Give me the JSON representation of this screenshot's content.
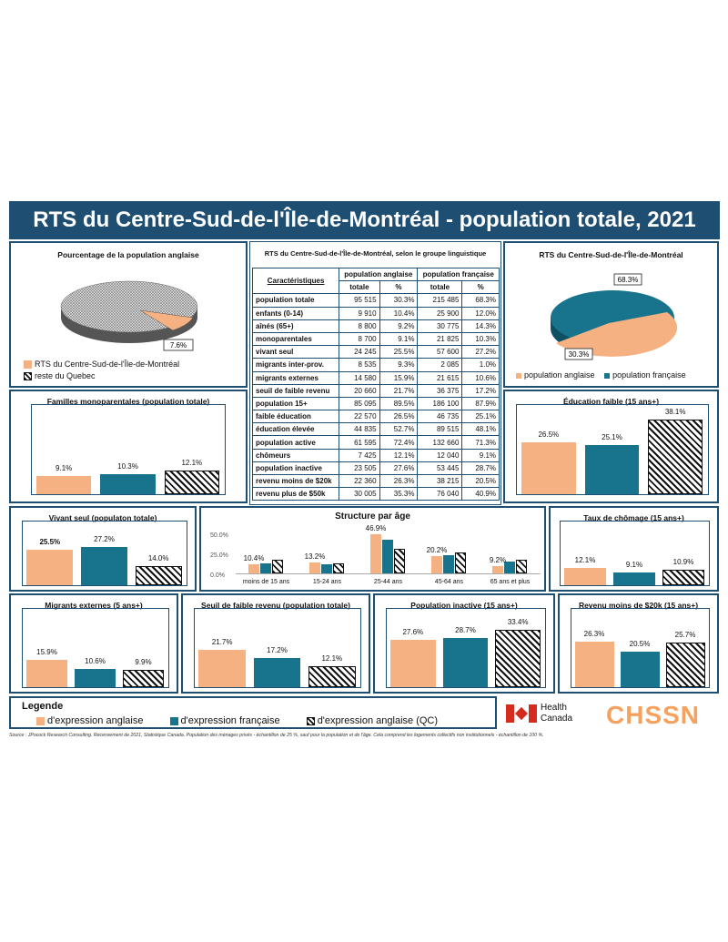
{
  "title": "RTS du Centre-Sud-de-l'Île-de-Montréal - population totale, 2021",
  "colors": {
    "english": "#f6b183",
    "french": "#17748c",
    "english_qc": "hatched",
    "frame": "#1f4e73"
  },
  "pie_left": {
    "title": "Pourcentage de la population anglaise",
    "slice_label": "7.6%",
    "legend": [
      "RTS du Centre-Sud-de-l'Île-de-Montréal",
      "reste du Quebec"
    ]
  },
  "pie_right": {
    "title": "RTS du Centre-Sud-de-l'Île-de-Montréal",
    "label_fra": "68.3%",
    "label_eng": "30.3%",
    "legend": [
      "population anglaise",
      "population française"
    ]
  },
  "table": {
    "title": "RTS du Centre-Sud-de-l'Île-de-Montréal, selon le groupe linguistique",
    "col_caract": "Caractéristiques",
    "col_eng": "population anglaise",
    "col_fra": "population française",
    "sub_total": "totale",
    "sub_pct": "%",
    "rows": [
      {
        "label": "population totale",
        "eng_n": "95 515",
        "eng_p": "30.3%",
        "fra_n": "215 485",
        "fra_p": "68.3%"
      },
      {
        "label": "enfants (0-14)",
        "eng_n": "9 910",
        "eng_p": "10.4%",
        "fra_n": "25 900",
        "fra_p": "12.0%"
      },
      {
        "label": "aînés (65+)",
        "eng_n": "8 800",
        "eng_p": "9.2%",
        "fra_n": "30 775",
        "fra_p": "14.3%"
      },
      {
        "label": "monoparentales",
        "eng_n": "8 700",
        "eng_p": "9.1%",
        "fra_n": "21 825",
        "fra_p": "10.3%"
      },
      {
        "label": "vivant seul",
        "eng_n": "24 245",
        "eng_p": "25.5%",
        "fra_n": "57 600",
        "fra_p": "27.2%"
      },
      {
        "label": "migrants inter-prov.",
        "eng_n": "8 535",
        "eng_p": "9.3%",
        "fra_n": "2 085",
        "fra_p": "1.0%"
      },
      {
        "label": "migrants externes",
        "eng_n": "14 580",
        "eng_p": "15.9%",
        "fra_n": "21 615",
        "fra_p": "10.6%"
      },
      {
        "label": "seuil de faible revenu",
        "eng_n": "20 660",
        "eng_p": "21.7%",
        "fra_n": "36 375",
        "fra_p": "17.2%"
      },
      {
        "label": "population 15+",
        "eng_n": "85 095",
        "eng_p": "89.5%",
        "fra_n": "186 100",
        "fra_p": "87.9%"
      },
      {
        "label": "faible éducation",
        "eng_n": "22 570",
        "eng_p": "26.5%",
        "fra_n": "46 735",
        "fra_p": "25.1%"
      },
      {
        "label": "éducation élevée",
        "eng_n": "44 835",
        "eng_p": "52.7%",
        "fra_n": "89 515",
        "fra_p": "48.1%"
      },
      {
        "label": "population active",
        "eng_n": "61 595",
        "eng_p": "72.4%",
        "fra_n": "132 660",
        "fra_p": "71.3%"
      },
      {
        "label": "chômeurs",
        "eng_n": "7 425",
        "eng_p": "12.1%",
        "fra_n": "12 040",
        "fra_p": "9.1%"
      },
      {
        "label": "population inactive",
        "eng_n": "23 505",
        "eng_p": "27.6%",
        "fra_n": "53 445",
        "fra_p": "28.7%"
      },
      {
        "label": "revenu moins de $20k",
        "eng_n": "22 360",
        "eng_p": "26.3%",
        "fra_n": "38 215",
        "fra_p": "20.5%"
      },
      {
        "label": "revenu plus de $50k",
        "eng_n": "30 005",
        "eng_p": "35.3%",
        "fra_n": "76 040",
        "fra_p": "40.9%"
      }
    ]
  },
  "legend": {
    "title": "Legende",
    "eng": "d'expression anglaise",
    "fra": "d'expression française",
    "qc": "d'expression anglaise (QC)"
  },
  "logos": {
    "health_canada_1": "Health",
    "health_canada_2": "Canada",
    "chssn": "CHSSN"
  },
  "source": "Source : JPocock Research Consulting. Recensement de 2021, Statistique Canada. Population des ménages privés - échantillon de 25 %, sauf pour la population et de l'âge. Cela comprend les logements collectifs non institutionnels - échantillon de 100 %.",
  "chart_data": [
    {
      "type": "pie",
      "title": "Pourcentage de la population anglaise",
      "categories": [
        "RTS du Centre-Sud-de-l'Île-de-Montréal",
        "reste du Quebec"
      ],
      "values": [
        7.6,
        92.4
      ]
    },
    {
      "type": "pie",
      "title": "RTS du Centre-Sud-de-l'Île-de-Montréal",
      "categories": [
        "population anglaise",
        "population française"
      ],
      "values": [
        30.3,
        68.3
      ]
    },
    {
      "type": "bar",
      "title": "Familles monoparentales (population totale)",
      "categories": [
        "d'expression anglaise",
        "d'expression française",
        "d'expression anglaise (QC)"
      ],
      "values": [
        9.1,
        10.3,
        12.1
      ],
      "labels": [
        "9.1%",
        "10.3%",
        "12.1%"
      ],
      "ymax": 45
    },
    {
      "type": "bar",
      "title": "Éducation faible (15 ans+)",
      "categories": [
        "d'expression anglaise",
        "d'expression française",
        "d'expression anglaise (QC)"
      ],
      "values": [
        26.5,
        25.1,
        38.1
      ],
      "labels": [
        "26.5%",
        "25.1%",
        "38.1%"
      ],
      "ymax": 45
    },
    {
      "type": "bar",
      "title": "Vivant seul (populaton totale)",
      "categories": [
        "d'expression anglaise",
        "d'expression française",
        "d'expression anglaise (QC)"
      ],
      "values": [
        25.5,
        27.2,
        14.0
      ],
      "labels": [
        "25.5%",
        "27.2%",
        "14.0%"
      ],
      "ymax": 45
    },
    {
      "type": "bar",
      "title": "Structure par âge",
      "yticks": [
        "50.0%",
        "25.0%",
        "0.0%"
      ],
      "ylim": [
        0,
        50
      ],
      "categories": [
        "moins de 15 ans",
        "15-24 ans",
        "25-44 ans",
        "45-64 ans",
        "65 ans et plus"
      ],
      "series": [
        {
          "name": "d'expression anglaise",
          "values": [
            10.4,
            13.2,
            46.9,
            20.2,
            9.2
          ],
          "labels": [
            "10.4%",
            "13.2%",
            "46.9%",
            "20.2%",
            "9.2%"
          ]
        },
        {
          "name": "d'expression française",
          "values": [
            12.0,
            11.0,
            40.0,
            22.0,
            14.3
          ]
        },
        {
          "name": "d'expression anglaise (QC)",
          "values": [
            16.0,
            12.0,
            29.0,
            25.0,
            16.0
          ]
        }
      ]
    },
    {
      "type": "bar",
      "title": "Taux de chômage (15 ans+)",
      "categories": [
        "d'expression anglaise",
        "d'expression française",
        "d'expression anglaise (QC)"
      ],
      "values": [
        12.1,
        9.1,
        10.9
      ],
      "labels": [
        "12.1%",
        "9.1%",
        "10.9%"
      ],
      "ymax": 45
    },
    {
      "type": "bar",
      "title": "Migrants externes (5 ans+)",
      "categories": [
        "d'expression anglaise",
        "d'expression française",
        "d'expression anglaise (QC)"
      ],
      "values": [
        15.9,
        10.6,
        9.9
      ],
      "labels": [
        "15.9%",
        "10.6%",
        "9.9%"
      ],
      "ymax": 45
    },
    {
      "type": "bar",
      "title": "Seuil de faible revenu (population totale)",
      "categories": [
        "d'expression anglaise",
        "d'expression française",
        "d'expression anglaise (QC)"
      ],
      "values": [
        21.7,
        17.2,
        12.1
      ],
      "labels": [
        "21.7%",
        "17.2%",
        "12.1%"
      ],
      "ymax": 45
    },
    {
      "type": "bar",
      "title": "Population inactive (15 ans+)",
      "categories": [
        "d'expression anglaise",
        "d'expression française",
        "d'expression anglaise (QC)"
      ],
      "values": [
        27.6,
        28.7,
        33.4
      ],
      "labels": [
        "27.6%",
        "28.7%",
        "33.4%"
      ],
      "ymax": 45
    },
    {
      "type": "bar",
      "title": "Revenu moins de $20k (15 ans+)",
      "categories": [
        "d'expression anglaise",
        "d'expression française",
        "d'expression anglaise (QC)"
      ],
      "values": [
        26.3,
        20.5,
        25.7
      ],
      "labels": [
        "26.3%",
        "20.5%",
        "25.7%"
      ],
      "ymax": 45
    }
  ]
}
